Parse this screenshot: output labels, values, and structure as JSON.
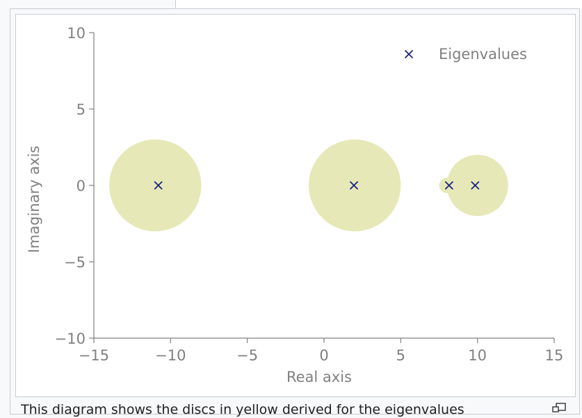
{
  "caption": {
    "text": "This diagram shows the discs in yellow derived for the eigenvalues"
  },
  "chart_data": {
    "type": "scatter",
    "title": "",
    "xlabel": "Real axis",
    "ylabel": "Imaginary axis",
    "xlim": [
      -15,
      15
    ],
    "ylim": [
      -10,
      10
    ],
    "xticks": [
      -15,
      -10,
      -5,
      0,
      5,
      10,
      15
    ],
    "yticks": [
      -10,
      -5,
      0,
      5,
      10
    ],
    "xtick_labels": [
      "−15",
      "−10",
      "−5",
      "0",
      "5",
      "10",
      "15"
    ],
    "ytick_labels": [
      "−10",
      "−5",
      "0",
      "5",
      "10"
    ],
    "grid": false,
    "legend_position": "top-right",
    "discs": [
      {
        "center": [
          -11,
          0
        ],
        "radius": 3
      },
      {
        "center": [
          2,
          0
        ],
        "radius": 3
      },
      {
        "center": [
          8,
          0
        ],
        "radius": 0.5
      },
      {
        "center": [
          10,
          0
        ],
        "radius": 2
      }
    ],
    "series": [
      {
        "name": "Eigenvalues",
        "marker": "x",
        "x": [
          -10.8,
          1.95,
          8.15,
          9.85
        ],
        "y": [
          0,
          0,
          0,
          0
        ]
      }
    ],
    "colors": {
      "disc": "#e6e8b8",
      "marker": "#1a237e",
      "axis": "#808080",
      "text": "#808080"
    }
  }
}
